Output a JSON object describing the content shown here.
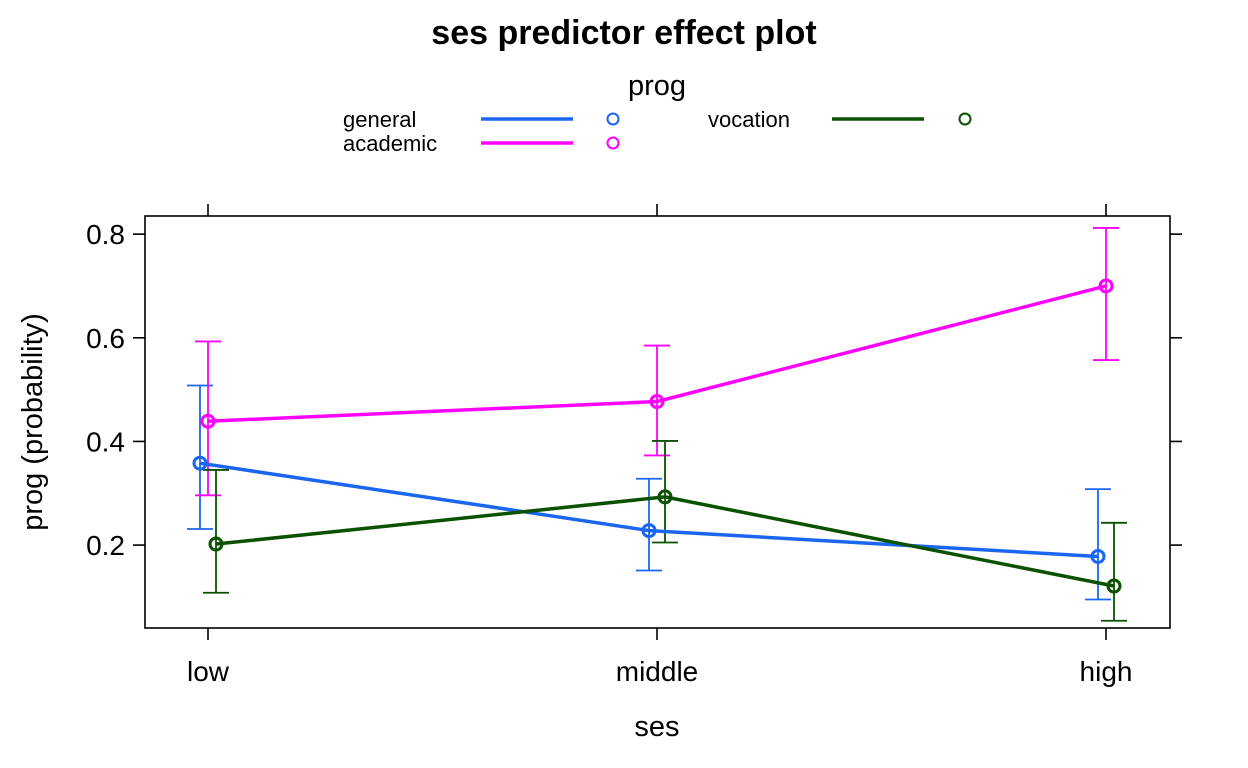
{
  "chart_data": {
    "type": "line",
    "title": "ses predictor effect plot",
    "xlabel": "ses",
    "ylabel": "prog (probability)",
    "categories": [
      "low",
      "middle",
      "high"
    ],
    "yticks": [
      0.2,
      0.4,
      0.6,
      0.8
    ],
    "ytick_labels": [
      "0.2",
      "0.4",
      "0.6",
      "0.8"
    ],
    "ylim": [
      0.04,
      0.835
    ],
    "legend": {
      "title": "prog",
      "placement": "top"
    },
    "series": [
      {
        "name": "general",
        "color": "#1A66F0",
        "values": [
          0.358,
          0.228,
          0.178
        ],
        "lower": [
          0.231,
          0.151,
          0.095
        ],
        "upper": [
          0.508,
          0.328,
          0.308
        ]
      },
      {
        "name": "academic",
        "color": "#FF00FF",
        "values": [
          0.439,
          0.477,
          0.7
        ],
        "lower": [
          0.296,
          0.373,
          0.557
        ],
        "upper": [
          0.593,
          0.585,
          0.812
        ]
      },
      {
        "name": "vocation",
        "color": "#0A5200",
        "values": [
          0.202,
          0.293,
          0.121
        ],
        "lower": [
          0.108,
          0.205,
          0.054
        ],
        "upper": [
          0.345,
          0.401,
          0.243
        ]
      }
    ]
  }
}
